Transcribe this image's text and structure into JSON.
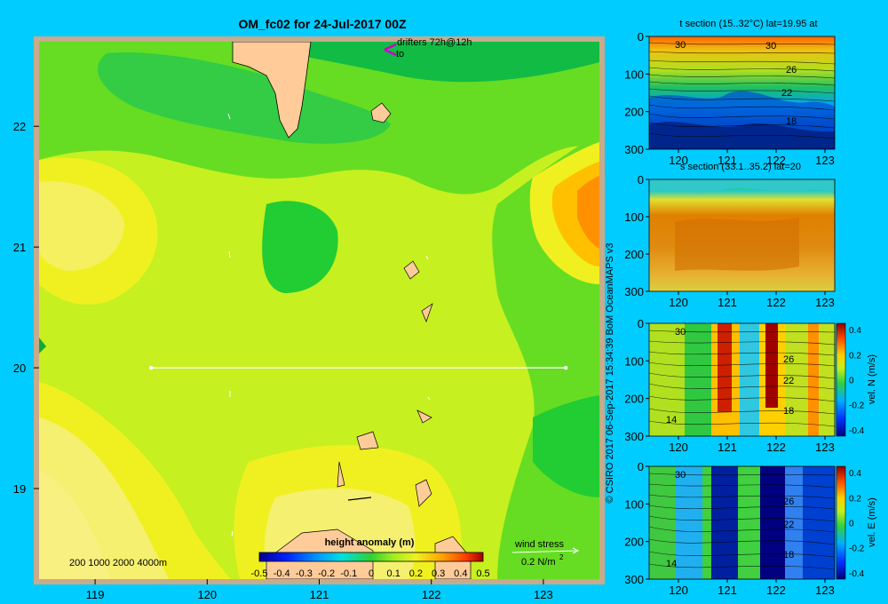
{
  "page": {
    "title": "OM_fc02 for 24-Jul-2017 00Z",
    "drifter_label": "drifters 72h@12h",
    "drifter_to": "to",
    "depth_legend": "200  1000  2000  4000m",
    "wind_label": "wind stress",
    "wind_scale": "0.2 N/m",
    "wind_scale_sup": "2",
    "credit": "© CSIRO 2017   06-Sep-2017 15:34:39 BoM OceanMAPS v3"
  },
  "chart_data": [
    {
      "type": "heatmap",
      "title": "",
      "x": {
        "ticks": [
          119,
          120,
          121,
          122,
          123
        ],
        "range": [
          118.5,
          123.5
        ]
      },
      "y": {
        "ticks": [
          19,
          20,
          21,
          22
        ],
        "range": [
          18.25,
          22.7
        ]
      },
      "colorbar": {
        "label": "height anomaly (m)",
        "ticks": [
          "-0.5",
          "-0.4",
          "-0.3",
          "-0.2",
          "-0.1",
          "0",
          "0.1",
          "0.2",
          "0.3",
          "0.4",
          "0.5"
        ],
        "range": [
          -0.5,
          0.5
        ]
      },
      "section_line": {
        "lat": 20,
        "lon_start": 119.5,
        "lon_end": 123.2
      }
    },
    {
      "type": "heatmap",
      "title": "t section (15..32°C) lat=19.95 at",
      "x": {
        "ticks": [
          "120",
          "121",
          "122",
          "123"
        ],
        "range": [
          119.4,
          123.2
        ]
      },
      "y": {
        "ticks": [
          "0",
          "100",
          "200",
          "300"
        ],
        "range": [
          0,
          300
        ],
        "inverted": true
      },
      "contour_labels": [
        "30",
        "30",
        "26",
        "22",
        "18"
      ]
    },
    {
      "type": "heatmap",
      "title": "s section (33.1..35.2) lat=20",
      "x": {
        "ticks": [
          "120",
          "121",
          "122",
          "123"
        ],
        "range": [
          119.4,
          123.2
        ]
      },
      "y": {
        "ticks": [
          "0",
          "100",
          "200",
          "300"
        ],
        "range": [
          0,
          300
        ],
        "inverted": true
      }
    },
    {
      "type": "heatmap",
      "title": "",
      "x": {
        "ticks": [
          "120",
          "121",
          "122",
          "123"
        ],
        "range": [
          119.4,
          123.2
        ]
      },
      "y": {
        "ticks": [
          "0",
          "100",
          "200",
          "300"
        ],
        "range": [
          0,
          300
        ],
        "inverted": true
      },
      "colorbar": {
        "label": "vel. N (m/s)",
        "ticks": [
          "0.4",
          "0.2",
          "0",
          "-0.2",
          "-0.4"
        ],
        "range": [
          -0.45,
          0.45
        ]
      },
      "contour_labels": [
        "30",
        "26",
        "22",
        "18",
        "14"
      ]
    },
    {
      "type": "heatmap",
      "title": "",
      "x": {
        "ticks": [
          "120",
          "121",
          "122",
          "123"
        ],
        "range": [
          119.4,
          123.2
        ]
      },
      "y": {
        "ticks": [
          "0",
          "100",
          "200",
          "300"
        ],
        "range": [
          0,
          300
        ],
        "inverted": true
      },
      "colorbar": {
        "label": "vel. E (m/s)",
        "ticks": [
          "0.4",
          "0.2",
          "0",
          "-0.2",
          "-0.4"
        ],
        "range": [
          -0.45,
          0.45
        ]
      },
      "contour_labels": [
        "30",
        "26",
        "22",
        "18",
        "14"
      ]
    }
  ],
  "colors": {
    "page_bg": "#00ccff",
    "land": "#ffcc99",
    "border": "#c8aa8c"
  }
}
